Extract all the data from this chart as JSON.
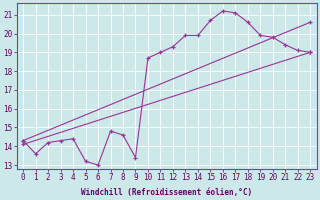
{
  "xlabel": "Windchill (Refroidissement éolien,°C)",
  "background_color": "#cce8e8",
  "grid_color": "#ffffff",
  "line_color": "#993399",
  "xlim_min": -0.5,
  "xlim_max": 23.5,
  "ylim_min": 12.8,
  "ylim_max": 21.6,
  "yticks": [
    13,
    14,
    15,
    16,
    17,
    18,
    19,
    20,
    21
  ],
  "xticks": [
    0,
    1,
    2,
    3,
    4,
    5,
    6,
    7,
    8,
    9,
    10,
    11,
    12,
    13,
    14,
    15,
    16,
    17,
    18,
    19,
    20,
    21,
    22,
    23
  ],
  "line1_x": [
    0,
    1,
    2,
    3,
    4,
    5,
    6,
    7,
    8,
    9,
    10,
    11,
    12,
    13,
    14,
    15,
    16,
    17,
    18,
    19,
    20,
    21,
    22,
    23
  ],
  "line1_y": [
    14.3,
    13.6,
    14.2,
    14.3,
    14.4,
    13.2,
    13.0,
    14.8,
    14.6,
    13.4,
    18.7,
    19.0,
    19.3,
    19.9,
    19.9,
    20.7,
    21.2,
    21.1,
    20.6,
    19.9,
    19.8,
    19.4,
    19.1,
    19.0
  ],
  "line2_x": [
    0,
    23
  ],
  "line2_y": [
    14.1,
    19.0
  ],
  "line3_x": [
    0,
    23
  ],
  "line3_y": [
    14.3,
    20.6
  ],
  "tick_fontsize": 5.5,
  "xlabel_fontsize": 5.5,
  "tick_color": "#660066",
  "spine_color": "#993399"
}
